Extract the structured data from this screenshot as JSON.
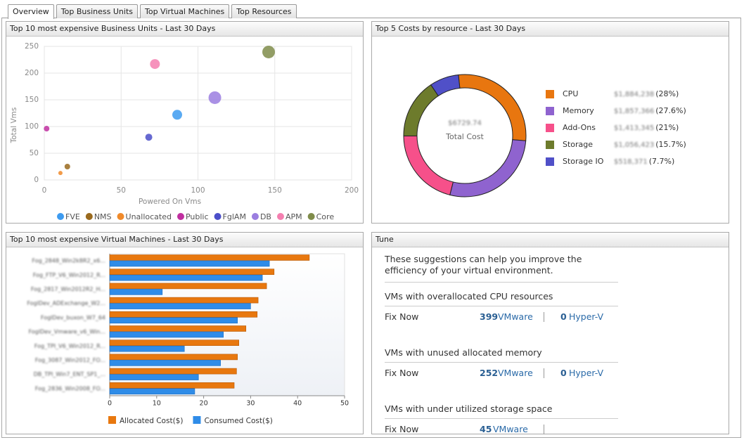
{
  "tabs": [
    "Overview",
    "Top Business Units",
    "Top Virtual Machines",
    "Top Resources"
  ],
  "chart_data": [
    {
      "type": "bubble",
      "title": "Top 10 most expensive Business Units - Last 30 Days",
      "x_label": "Powered On Vms",
      "y_label": "Total Vms",
      "xlim": [
        0,
        200
      ],
      "xticks": [
        0,
        50,
        100,
        150,
        200
      ],
      "ylim": [
        0,
        250
      ],
      "yticks": [
        0,
        50,
        100,
        150,
        200,
        250
      ],
      "grid": true,
      "series": [
        {
          "name": "FVE",
          "color": "#3d9bf0",
          "x": [
            86.5
          ],
          "values": [
            122
          ],
          "sizes": [
            7
          ]
        },
        {
          "name": "NMS",
          "color": "#9a6a1e",
          "x": [
            15
          ],
          "values": [
            25
          ],
          "sizes": [
            4
          ]
        },
        {
          "name": "Unallocated",
          "color": "#f08a2a",
          "x": [
            10.5
          ],
          "values": [
            13
          ],
          "sizes": [
            3
          ]
        },
        {
          "name": "Public",
          "color": "#c02fa0",
          "x": [
            1.5
          ],
          "values": [
            96
          ],
          "sizes": [
            4
          ]
        },
        {
          "name": "FglAM",
          "color": "#4b4fc9",
          "x": [
            68
          ],
          "values": [
            80
          ],
          "sizes": [
            5
          ]
        },
        {
          "name": "DB",
          "color": "#9b7ee0",
          "x": [
            111
          ],
          "values": [
            154
          ],
          "sizes": [
            9
          ]
        },
        {
          "name": "APM",
          "color": "#f47fb0",
          "x": [
            72
          ],
          "values": [
            217
          ],
          "sizes": [
            7
          ]
        },
        {
          "name": "Core",
          "color": "#7f8c4a",
          "x": [
            146
          ],
          "values": [
            239.5
          ],
          "sizes": [
            9
          ]
        }
      ]
    },
    {
      "type": "donut",
      "title": "Top 5 Costs by resource - Last 30 Days",
      "center_value": "$6729.74",
      "center_label": "Total Cost",
      "categories": [
        "CPU",
        "Memory",
        "Add-Ons",
        "Storage",
        "Storage IO"
      ],
      "amounts": [
        "$1,884,238",
        "$1,857,366",
        "$1,413,345",
        "$1,056,423",
        "$518,371"
      ],
      "values": [
        28,
        27.6,
        21,
        15.7,
        7.7
      ],
      "value_labels": [
        "(28%)",
        "(27.6%)",
        "(21%)",
        "(15.7%)",
        "(7.7%)"
      ],
      "colors": [
        "#e8760f",
        "#8f63cf",
        "#f6508a",
        "#6d7b2c",
        "#5050c8"
      ]
    },
    {
      "type": "hbar",
      "title": "Top 10 most expensive Virtual Machines - Last 30 Days",
      "categories": [
        "Fog_2848_Win2k8R2_x6...",
        "Fog_FTP_V6_Win2012_R...",
        "Fog_2817_Win2012R2_H...",
        "FoglDev_ADExchange_W2...",
        "FoglDev_buxon_W7_64",
        "FoglDev_Vmware_v6_Win...",
        "Fog_TPI_V6_Win2012_R...",
        "Fog_3087_Win2012_FO...",
        "DB_TPI_Win7_ENT_SP1_...",
        "Fog_2836_Win2008_FO..."
      ],
      "xlim": [
        0,
        50
      ],
      "xticks": [
        0,
        10,
        20,
        30,
        40,
        50
      ],
      "series": [
        {
          "name": "Allocated Cost($)",
          "color": "#e8780f",
          "values": [
            42.5,
            35,
            33.4,
            31.6,
            31.4,
            29,
            27.5,
            27.2,
            27,
            26.5
          ]
        },
        {
          "name": "Consumed Cost($)",
          "color": "#2f8ce8",
          "values": [
            34,
            32.5,
            11.2,
            30,
            27.2,
            24.2,
            15.9,
            23.6,
            18.9,
            18.1
          ]
        }
      ]
    }
  ],
  "tune": {
    "title": "Tune",
    "intro": "These suggestions can help you improve the efficiency of your virtual environment.",
    "sections": [
      {
        "heading": "VMs with overallocated CPU resources",
        "action": "Fix Now",
        "vmware_count": 399,
        "vmware_label": "VMware",
        "hyperv_count": 0,
        "hyperv_label": "Hyper-V"
      },
      {
        "heading": "VMs with unused allocated memory",
        "action": "Fix Now",
        "vmware_count": 252,
        "vmware_label": "VMware",
        "hyperv_count": 0,
        "hyperv_label": "Hyper-V"
      },
      {
        "heading": "VMs with under utilized storage space",
        "action": "Fix Now",
        "vmware_count": 45,
        "vmware_label": "VMware"
      }
    ]
  }
}
